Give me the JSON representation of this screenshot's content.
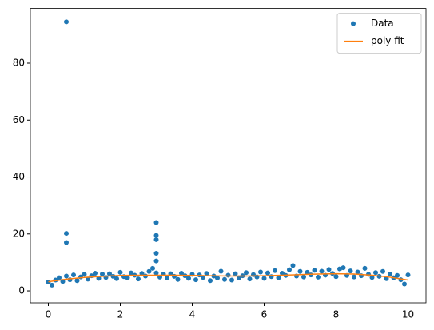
{
  "chart_data": {
    "type": "scatter",
    "xlim": [
      -0.5,
      10.5
    ],
    "ylim": [
      -4.2,
      99.2
    ],
    "xticks": [
      0,
      2,
      4,
      6,
      8,
      10
    ],
    "yticks": [
      0,
      20,
      40,
      60,
      80
    ],
    "legend": "upper right",
    "series": [
      {
        "name": "Data",
        "type": "scatter",
        "color": "#1f77b4",
        "x": [
          0,
          0.1,
          0.2,
          0.3,
          0.4,
          0.5,
          0.6,
          0.7,
          0.8,
          0.9,
          1,
          1.1,
          1.2,
          1.3,
          1.4,
          1.5,
          1.6,
          1.7,
          1.8,
          1.9,
          2,
          2.1,
          2.2,
          2.3,
          2.4,
          2.5,
          2.6,
          2.7,
          2.8,
          2.9,
          3,
          3.1,
          3.2,
          3.3,
          3.4,
          3.5,
          3.6,
          3.7,
          3.8,
          3.9,
          4,
          4.1,
          4.2,
          4.3,
          4.4,
          4.5,
          4.6,
          4.7,
          4.8,
          4.9,
          5,
          5.1,
          5.2,
          5.3,
          5.4,
          5.5,
          5.6,
          5.7,
          5.8,
          5.9,
          6,
          6.1,
          6.2,
          6.3,
          6.4,
          6.5,
          6.6,
          6.7,
          6.8,
          6.9,
          7,
          7.1,
          7.2,
          7.3,
          7.4,
          7.5,
          7.6,
          7.7,
          7.8,
          7.9,
          8,
          8.1,
          8.2,
          8.3,
          8.4,
          8.5,
          8.6,
          8.7,
          8.8,
          8.9,
          9,
          9.1,
          9.2,
          9.3,
          9.4,
          9.5,
          9.6,
          9.7,
          9.8,
          9.9,
          10,
          0.5,
          0.5,
          0.5,
          3,
          3,
          3,
          3,
          3
        ],
        "values": [
          3.1,
          2.0,
          3.8,
          4.6,
          3.3,
          5.2,
          3.9,
          5.6,
          3.6,
          4.9,
          5.8,
          4.1,
          5.3,
          6.2,
          4.4,
          5.9,
          4.7,
          6.0,
          5.1,
          4.3,
          6.5,
          5.0,
          4.6,
          6.3,
          5.5,
          4.2,
          6.1,
          5.2,
          6.8,
          7.9,
          6.3,
          4.8,
          5.9,
          4.5,
          6.0,
          5.1,
          4.0,
          6.2,
          5.3,
          4.4,
          5.8,
          3.9,
          5.6,
          4.7,
          6.1,
          3.6,
          5.2,
          4.5,
          6.9,
          4.0,
          5.5,
          3.8,
          6.0,
          4.6,
          5.3,
          6.4,
          4.2,
          5.7,
          4.9,
          6.6,
          4.4,
          6.3,
          5.0,
          7.1,
          4.6,
          6.2,
          5.4,
          7.4,
          8.9,
          5.2,
          6.8,
          4.9,
          6.5,
          5.6,
          7.2,
          4.8,
          6.9,
          5.5,
          7.5,
          6.1,
          5.0,
          7.7,
          8.1,
          5.4,
          7.0,
          4.9,
          6.6,
          5.3,
          7.9,
          5.8,
          4.7,
          6.4,
          5.1,
          6.8,
          4.3,
          5.9,
          4.6,
          5.4,
          3.9,
          2.4,
          5.6,
          94.5,
          20.2,
          17.0,
          24.0,
          19.5,
          18.0,
          13.2,
          10.5
        ]
      },
      {
        "name": "poly fit",
        "type": "line",
        "color": "#ff7f0e",
        "x": [
          0,
          0.5,
          1,
          1.5,
          2,
          2.5,
          3,
          3.5,
          4,
          4.5,
          5,
          5.5,
          6,
          6.5,
          7,
          7.5,
          8,
          8.5,
          9,
          9.5,
          10
        ],
        "values": [
          3.2,
          4.1,
          4.7,
          5.1,
          5.4,
          5.5,
          5.5,
          5.5,
          5.4,
          5.3,
          5.2,
          5.2,
          5.3,
          5.5,
          5.7,
          5.9,
          6.0,
          5.9,
          5.5,
          4.8,
          3.8
        ]
      }
    ]
  }
}
